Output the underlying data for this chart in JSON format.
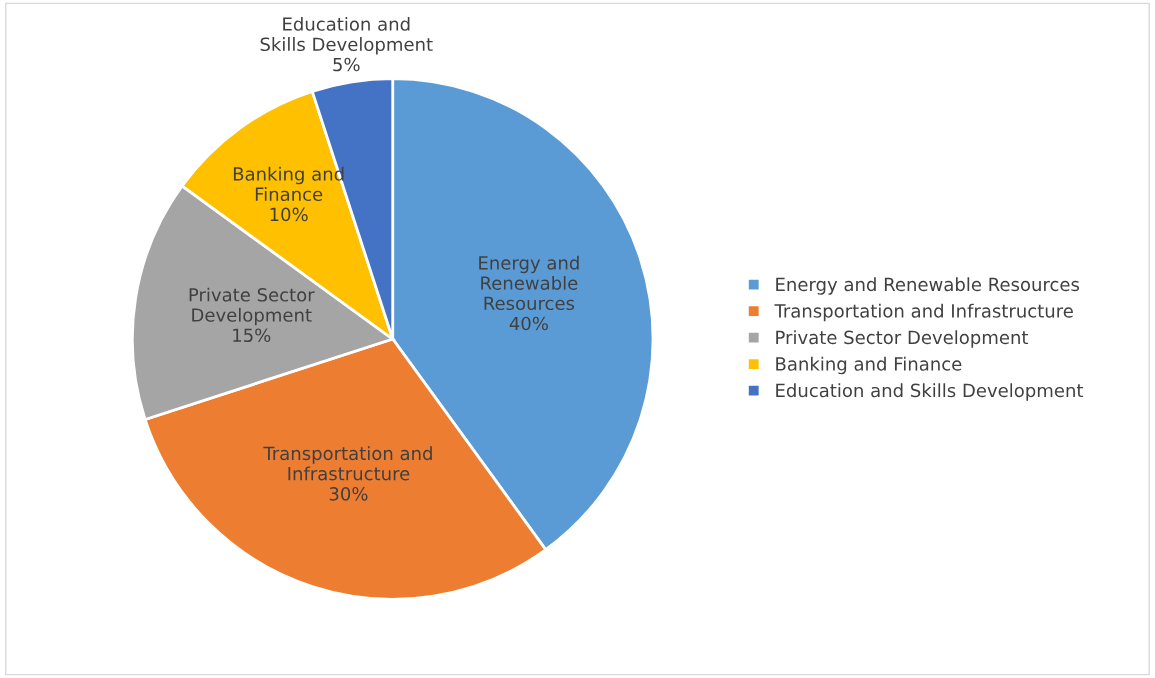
{
  "chart_data": {
    "type": "pie",
    "categories": [
      "Energy and Renewable Resources",
      "Transportation and Infrastructure",
      "Private Sector Development",
      "Banking and Finance",
      "Education and Skills Development"
    ],
    "values": [
      40,
      30,
      15,
      10,
      5
    ],
    "value_labels": [
      "40%",
      "30%",
      "15%",
      "10%",
      "5%"
    ],
    "colors": [
      "#5b9bd5",
      "#ed7d31",
      "#a5a5a5",
      "#ffc000",
      "#4472c4"
    ],
    "legend": "right"
  }
}
